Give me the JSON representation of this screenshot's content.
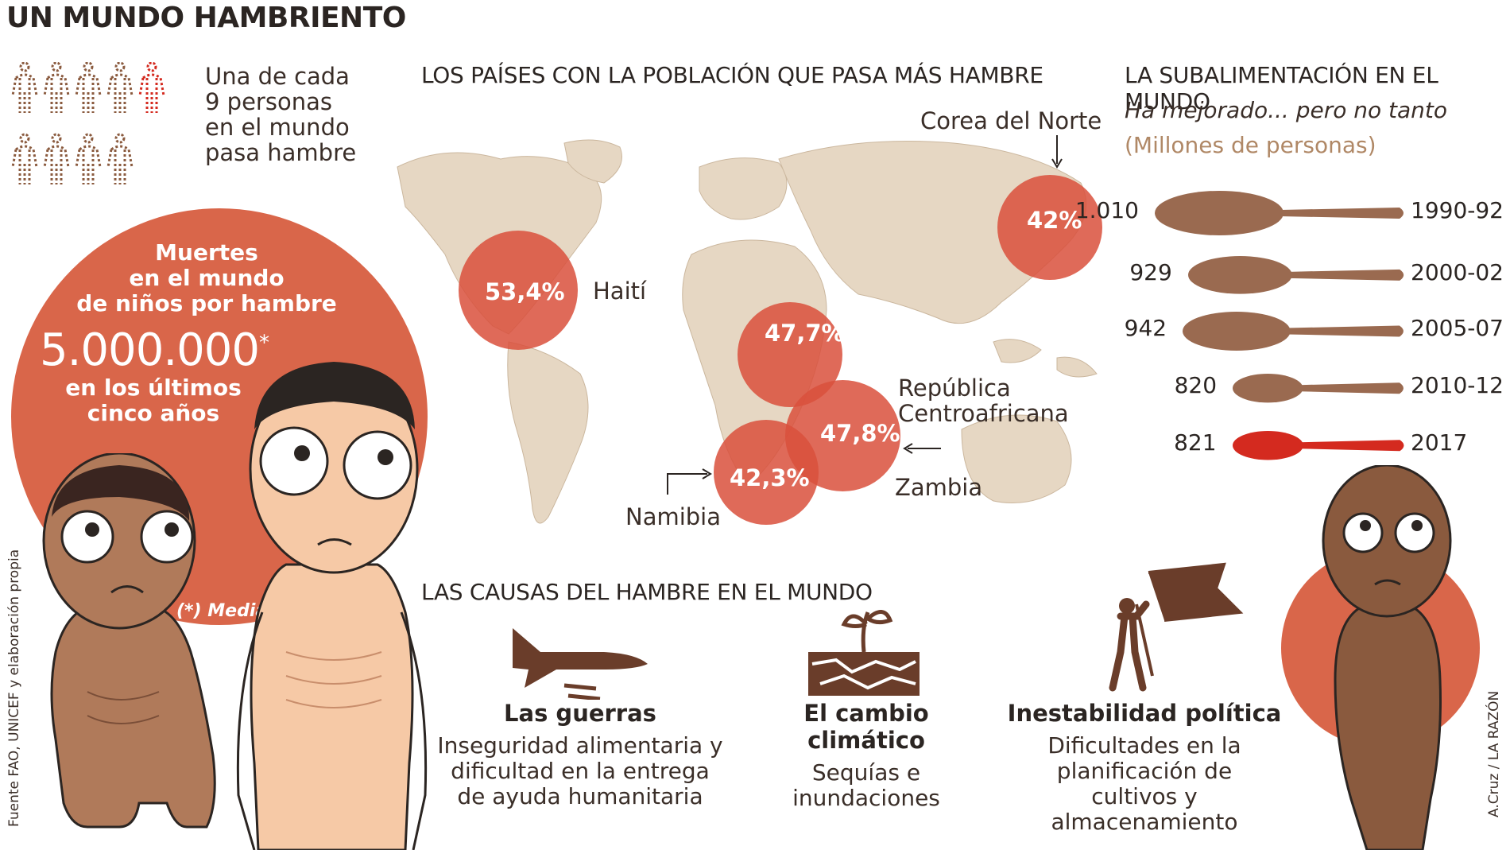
{
  "title": "UN MUNDO HAMBRIENTO",
  "people_stat": {
    "line1": "Una de cada",
    "line2": "9 personas",
    "line3": "en el mundo",
    "line4": "pasa hambre",
    "total_people": 9,
    "highlighted": 1
  },
  "child_deaths": {
    "line1": "Muertes",
    "line2": "en el mundo",
    "line3": "de niños por hambre",
    "number": "5.000.000",
    "asterisk": "*",
    "line4": "en los últimos",
    "line5": "cinco años",
    "note": "(*) Media"
  },
  "map": {
    "heading": "LOS PAÍSES CON LA POBLACIÓN QUE PASA MÁS HAMBRE",
    "countries": [
      {
        "name": "Haití",
        "value": "53,4%"
      },
      {
        "name": "Corea del Norte",
        "value": "42%"
      },
      {
        "name_line1": "República",
        "name_line2": "Centroafricana",
        "value": "47,7%"
      },
      {
        "name": "Zambia",
        "value": "47,8%"
      },
      {
        "name": "Namibia",
        "value": "42,3%"
      }
    ]
  },
  "undernourishment": {
    "heading": "LA SUBALIMENTACIÓN EN EL MUNDO",
    "subtitle": "Ha mejorado... pero no tanto",
    "unit": "(Millones de personas)",
    "rows": [
      {
        "value": "1.010",
        "period": "1990-92",
        "millions": 1010
      },
      {
        "value": "929",
        "period": "2000-02",
        "millions": 929
      },
      {
        "value": "942",
        "period": "2005-07",
        "millions": 942
      },
      {
        "value": "820",
        "period": "2010-12",
        "millions": 820
      },
      {
        "value": "821",
        "period": "2017",
        "millions": 821
      }
    ]
  },
  "causes": {
    "heading": "LAS CAUSAS DEL HAMBRE EN EL MUNDO",
    "items": [
      {
        "title": "Las guerras",
        "desc1": "Inseguridad alimentaria y",
        "desc2": "dificultad en la entrega",
        "desc3": "de ayuda humanitaria"
      },
      {
        "title": "El cambio climático",
        "desc1": "Sequías e",
        "desc2": "inundaciones",
        "desc3": ""
      },
      {
        "title": "Inestabilidad política",
        "desc1": "Dificultades en la",
        "desc2": "planificación de",
        "desc3": "cultivos y almacenamiento"
      }
    ]
  },
  "source": "Fuente FAO, UNICEF y elaboración propia",
  "credit": "A.Cruz / LA RAZÓN",
  "colors": {
    "accent": "#d9664a",
    "spoon": "#9a6a50",
    "spoon_highlight": "#d42a1f",
    "map": "#e6d7c3",
    "skin_dark": "#b07a5a",
    "skin_light": "#f6c9a6"
  }
}
